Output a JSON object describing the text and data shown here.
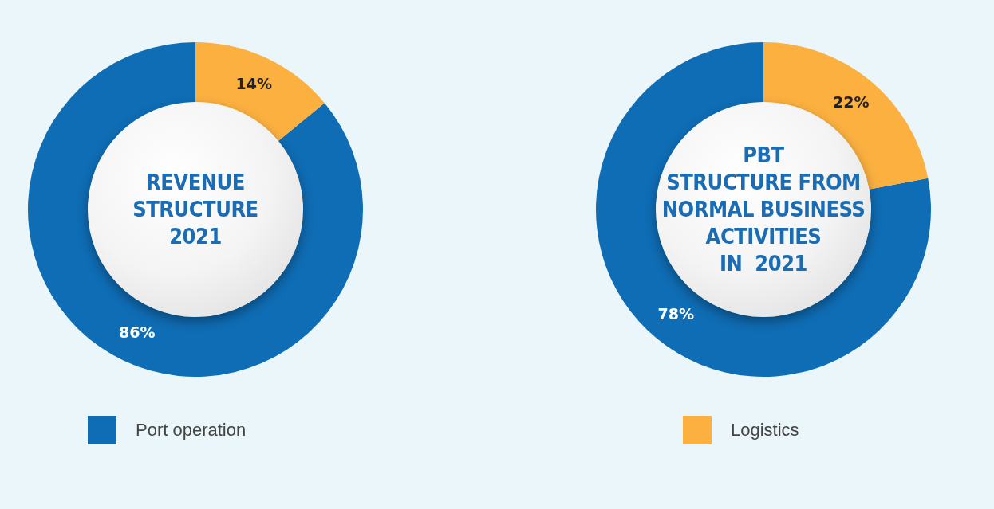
{
  "chart_data": [
    {
      "type": "donut",
      "title": "REVENUE\nSTRUCTURE\n2021",
      "categories": [
        "Port operation",
        "Logistics"
      ],
      "values": [
        86,
        14
      ],
      "colors": [
        "#0f6db5",
        "#fbb040"
      ],
      "value_labels": [
        "86%",
        "14%"
      ],
      "legend": "bottom"
    },
    {
      "type": "donut",
      "title": "PBT\nSTRUCTURE FROM\nNORMAL BUSINESS\nACTIVITIES\nIN  2021",
      "categories": [
        null,
        null
      ],
      "values": [
        78,
        22
      ],
      "colors": [
        "#0f6db5",
        "#fbb040"
      ],
      "value_labels": [
        "78%",
        "22%"
      ]
    }
  ]
}
